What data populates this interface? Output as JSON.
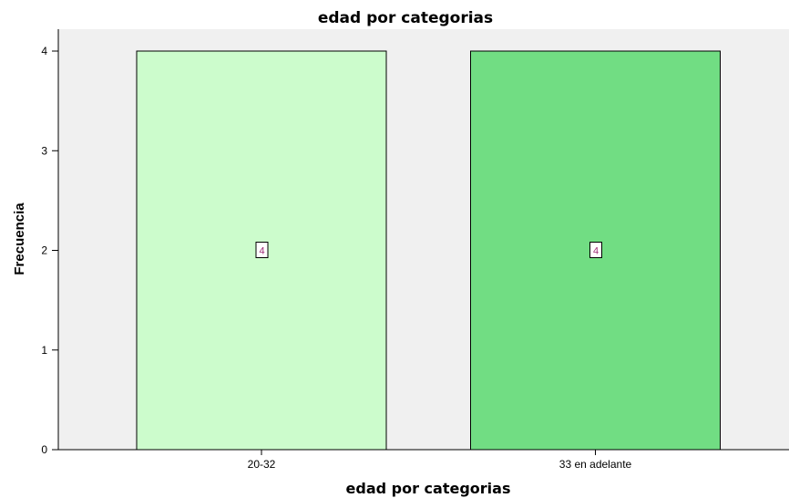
{
  "chart_data": {
    "type": "bar",
    "title": "edad por categorias",
    "xlabel": "edad por categorias",
    "ylabel": "Frecuencia",
    "categories": [
      "20-32",
      "33 en adelante"
    ],
    "values": [
      4,
      4
    ],
    "data_labels": [
      "4",
      "4"
    ],
    "ylim": [
      0,
      4.2
    ],
    "yticks": [
      "0",
      "1",
      "2",
      "3",
      "4"
    ],
    "grid": false,
    "bar_colors": [
      "#ccfccc",
      "#71dd83"
    ],
    "plot_background": "#f0f0f0",
    "data_label_color": "#a0307a"
  }
}
